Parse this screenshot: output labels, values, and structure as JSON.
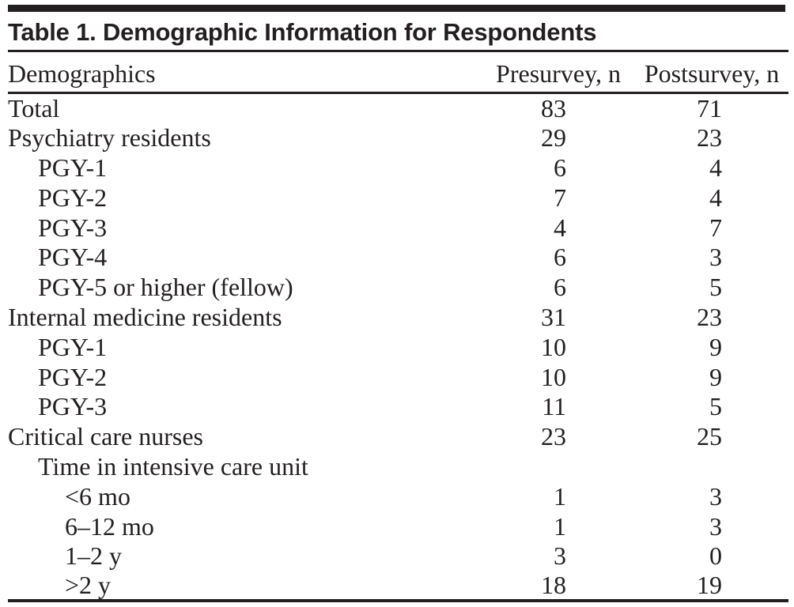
{
  "title": "Table 1. Demographic Information for Respondents",
  "columns": {
    "label": "Demographics",
    "pre": "Presurvey, n",
    "post": "Postsurvey, n"
  },
  "rows": [
    {
      "label": "Total",
      "indent": 0,
      "pre": "83",
      "post": "71"
    },
    {
      "label": "Psychiatry residents",
      "indent": 0,
      "pre": "29",
      "post": "23"
    },
    {
      "label": "PGY-1",
      "indent": 1,
      "pre": "6",
      "post": "4"
    },
    {
      "label": "PGY-2",
      "indent": 1,
      "pre": "7",
      "post": "4"
    },
    {
      "label": "PGY-3",
      "indent": 1,
      "pre": "4",
      "post": "7"
    },
    {
      "label": "PGY-4",
      "indent": 1,
      "pre": "6",
      "post": "3"
    },
    {
      "label": "PGY-5 or higher (fellow)",
      "indent": 1,
      "pre": "6",
      "post": "5"
    },
    {
      "label": "Internal medicine residents",
      "indent": 0,
      "pre": "31",
      "post": "23"
    },
    {
      "label": "PGY-1",
      "indent": 1,
      "pre": "10",
      "post": "9"
    },
    {
      "label": "PGY-2",
      "indent": 1,
      "pre": "10",
      "post": "9"
    },
    {
      "label": "PGY-3",
      "indent": 1,
      "pre": "11",
      "post": "5"
    },
    {
      "label": "Critical care nurses",
      "indent": 0,
      "pre": "23",
      "post": "25"
    },
    {
      "label": "Time in intensive care unit",
      "indent": 1,
      "pre": "",
      "post": ""
    },
    {
      "label": "<6 mo",
      "indent": 2,
      "pre": "1",
      "post": "3"
    },
    {
      "label": "6–12 mo",
      "indent": 2,
      "pre": "1",
      "post": "3"
    },
    {
      "label": "1–2 y",
      "indent": 2,
      "pre": "3",
      "post": "0"
    },
    {
      "label": ">2 y",
      "indent": 2,
      "pre": "18",
      "post": "19"
    }
  ],
  "colors": {
    "ink": "#231f20",
    "background": "#ffffff"
  }
}
